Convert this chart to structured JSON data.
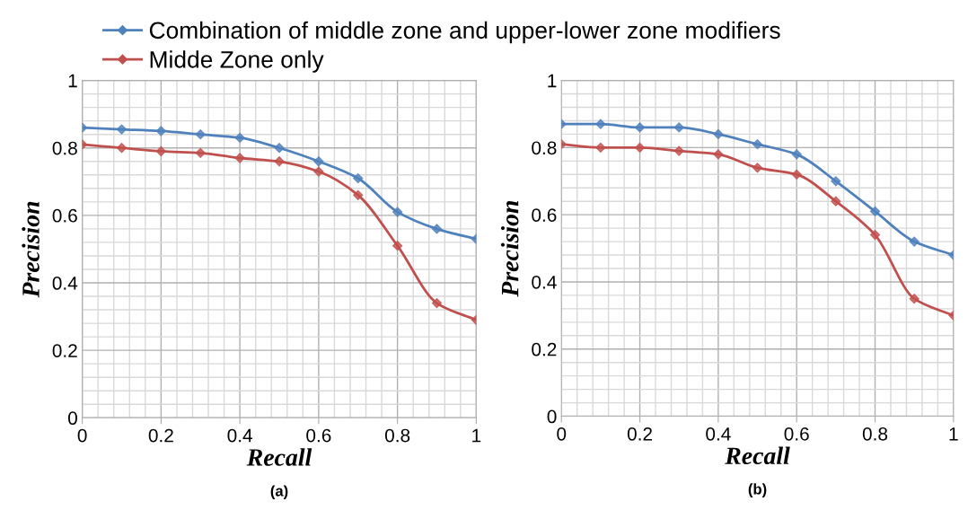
{
  "chart_data": [
    {
      "type": "line",
      "xlabel": "Recall",
      "ylabel": "Precision",
      "annotations": [
        "(a)"
      ],
      "x": [
        0,
        0.1,
        0.2,
        0.3,
        0.4,
        0.5,
        0.6,
        0.7,
        0.8,
        0.9,
        1
      ],
      "series": [
        {
          "name": "Combination of middle zone and upper-lower zone modifiers",
          "color": "#4f81bd",
          "values": [
            0.86,
            0.855,
            0.85,
            0.84,
            0.83,
            0.8,
            0.76,
            0.71,
            0.61,
            0.56,
            0.53
          ]
        },
        {
          "name": "Midde Zone only",
          "color": "#c0504d",
          "values": [
            0.81,
            0.8,
            0.79,
            0.785,
            0.77,
            0.76,
            0.73,
            0.66,
            0.51,
            0.34,
            0.29
          ]
        }
      ],
      "xlim": [
        0,
        1
      ],
      "ylim": [
        0,
        1
      ],
      "xticks": [
        0,
        0.2,
        0.4,
        0.6,
        0.8,
        1
      ],
      "yticks": [
        0,
        0.2,
        0.4,
        0.6,
        0.8,
        1
      ],
      "grid": true,
      "marker": "diamond",
      "legend": "top"
    },
    {
      "type": "line",
      "xlabel": "Recall",
      "ylabel": "Precision",
      "annotations": [
        "(b)"
      ],
      "x": [
        0,
        0.1,
        0.2,
        0.3,
        0.4,
        0.5,
        0.6,
        0.7,
        0.8,
        0.9,
        1
      ],
      "series": [
        {
          "color": "#4f81bd",
          "values": [
            0.87,
            0.87,
            0.86,
            0.86,
            0.84,
            0.81,
            0.78,
            0.7,
            0.61,
            0.52,
            0.48
          ]
        },
        {
          "color": "#c0504d",
          "values": [
            0.81,
            0.8,
            0.8,
            0.79,
            0.78,
            0.74,
            0.72,
            0.64,
            0.54,
            0.35,
            0.3
          ]
        }
      ],
      "xlim": [
        0,
        1
      ],
      "ylim": [
        0,
        1
      ],
      "xticks": [
        0,
        0.2,
        0.4,
        0.6,
        0.8,
        1
      ],
      "yticks": [
        0,
        0.2,
        0.4,
        0.6,
        0.8,
        1
      ],
      "grid": true,
      "marker": "diamond"
    }
  ]
}
